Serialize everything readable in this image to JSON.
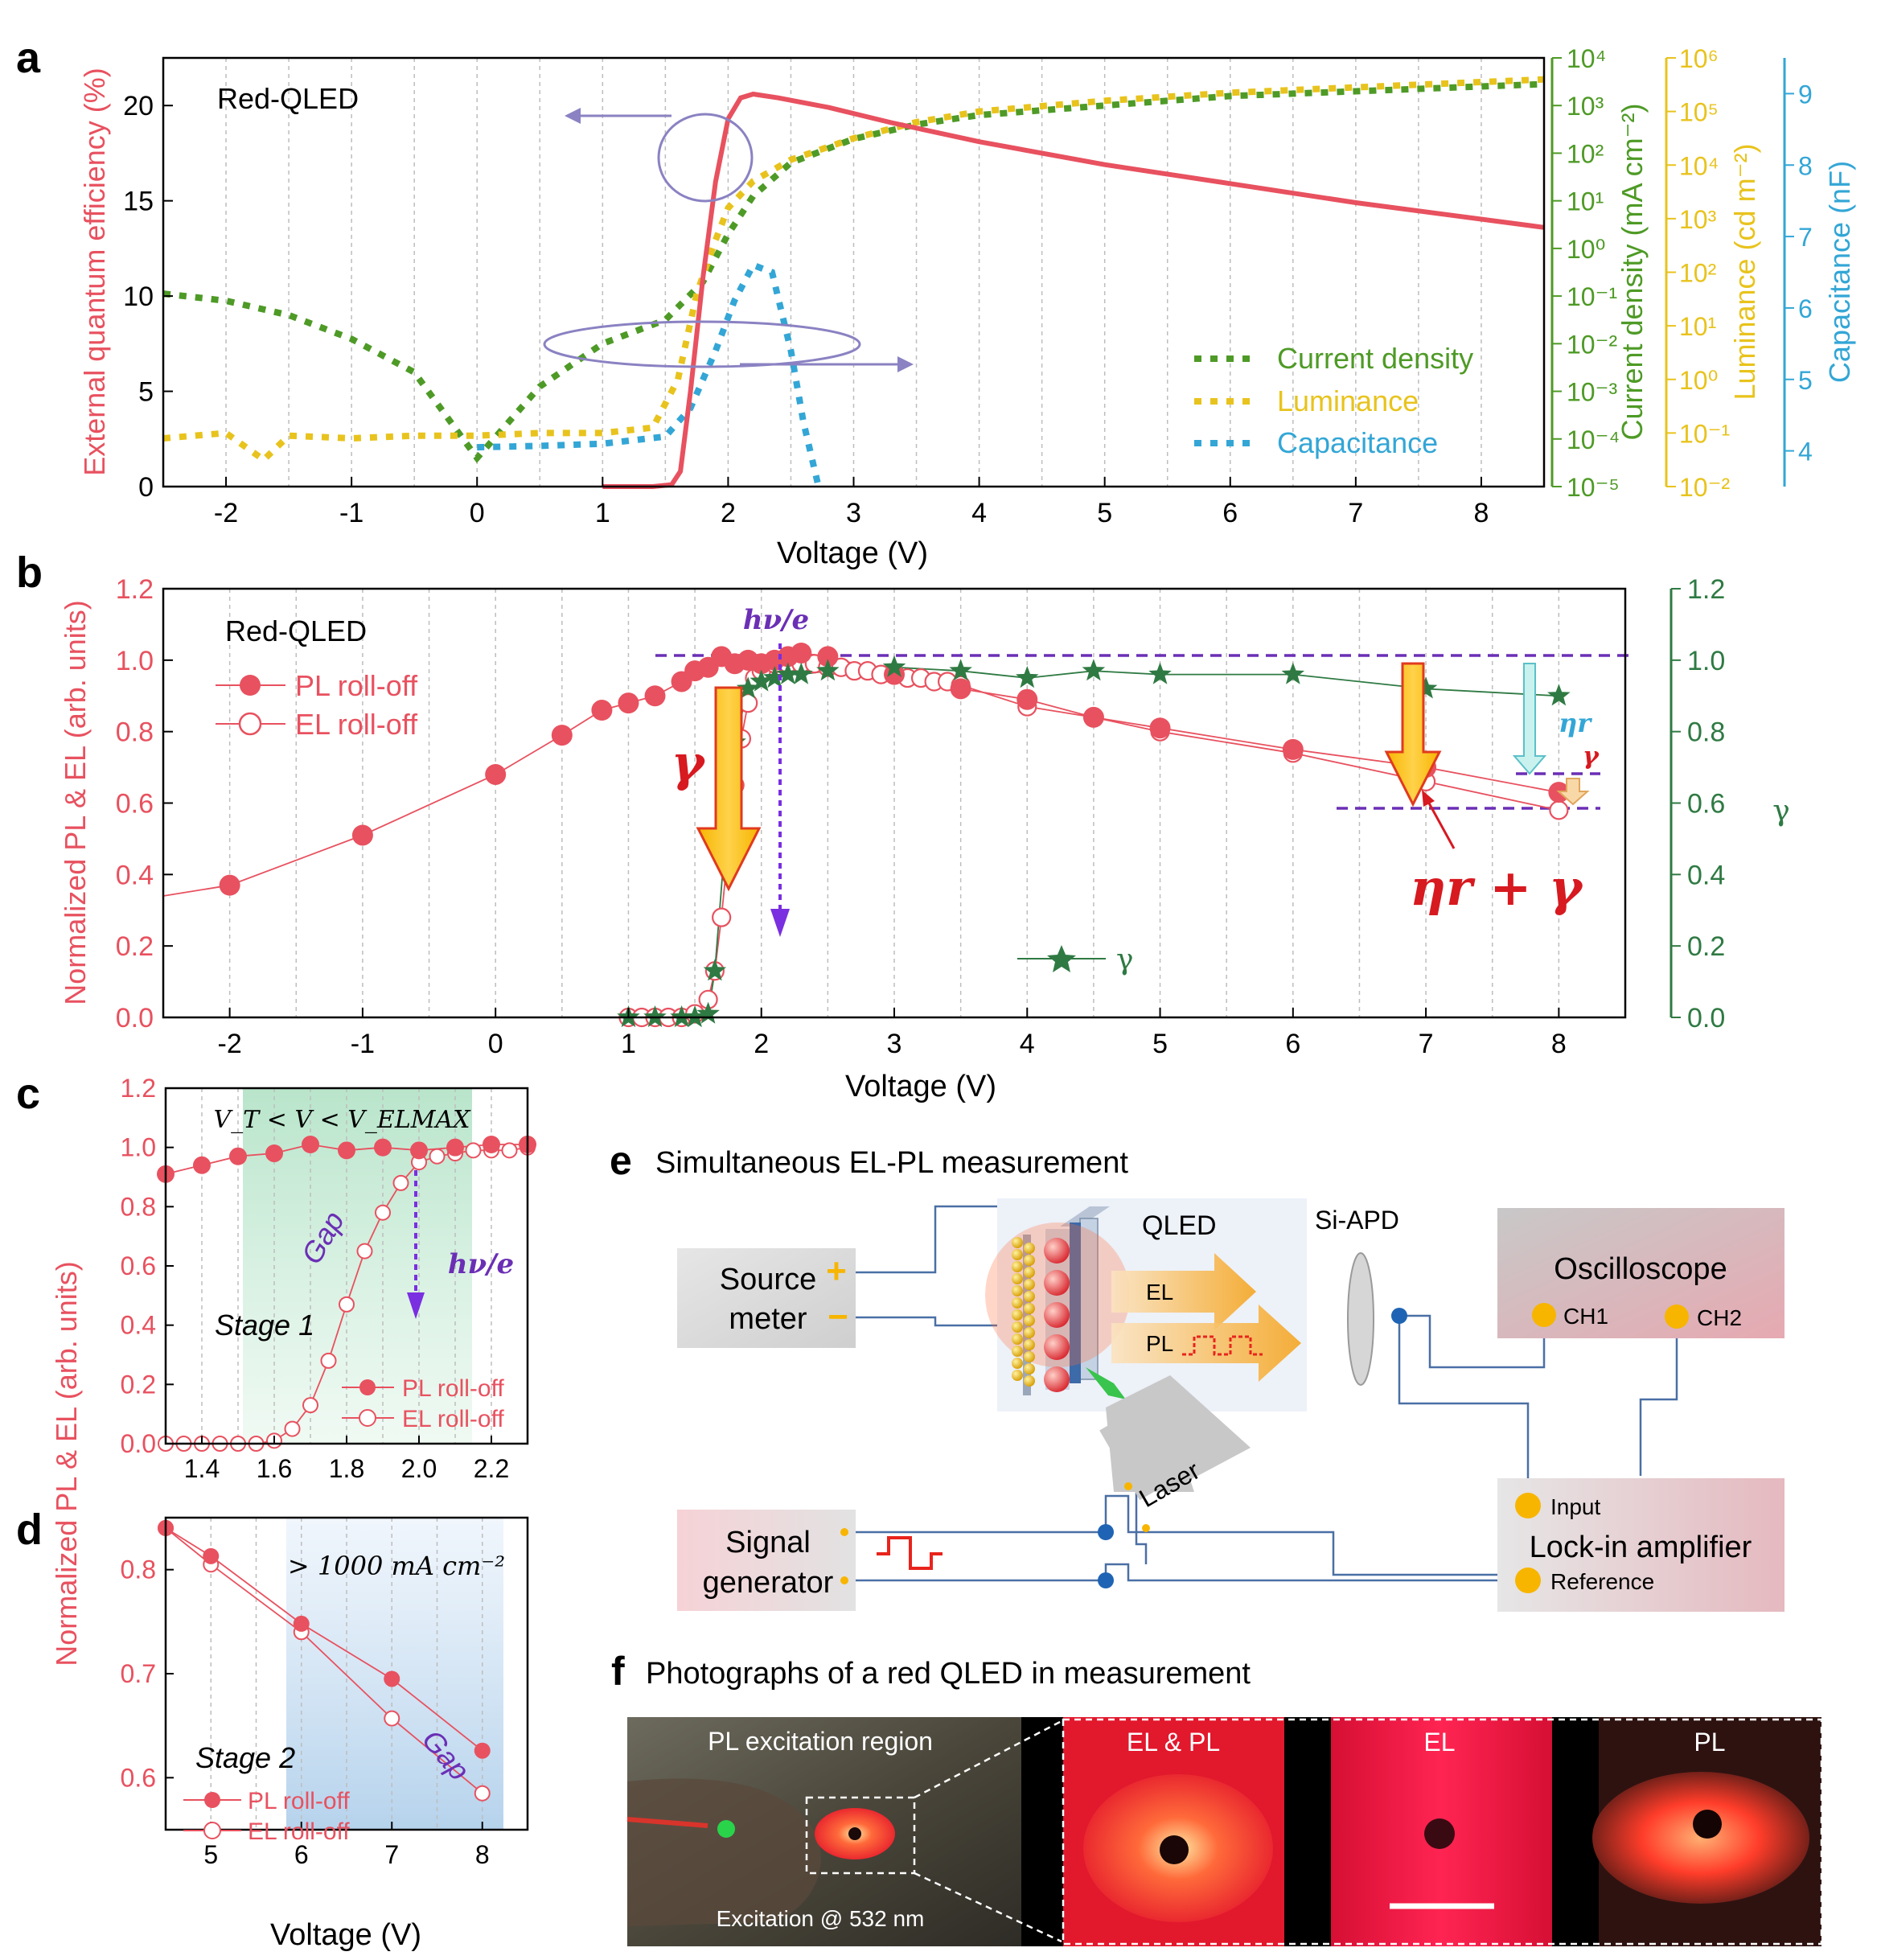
{
  "panels": {
    "a": "a",
    "b": "b",
    "c": "c",
    "d": "d",
    "e": "e",
    "f": "f"
  },
  "colors": {
    "eqe": "#e8515f",
    "current": "#4e9a26",
    "luminance": "#e8c31d",
    "capacitance": "#33a6d6",
    "pl": "#e8515f",
    "gamma": "#2f7a43",
    "purple": "#6b2fb5",
    "arrow_red": "#d71920",
    "arrow_orange": "#f7b500"
  },
  "chart_data": [
    {
      "panel": "a",
      "type": "line",
      "annotation": "Red-QLED",
      "xlabel": "Voltage (V)",
      "xlim": [
        -2.5,
        8.5
      ],
      "xticks": [
        "-2",
        "-1",
        "0",
        "1",
        "2",
        "3",
        "4",
        "5",
        "6",
        "7",
        "8"
      ],
      "ylabel_left": "External quantum efficiency (%)",
      "ylim_left": [
        0,
        22.5
      ],
      "yticks_left": [
        "0",
        "5",
        "10",
        "15",
        "20"
      ],
      "axis_current": {
        "label": "Current density (mA cm⁻²)",
        "range_log10": [
          -5,
          4
        ],
        "ticks": [
          "10⁻⁵",
          "10⁻⁴",
          "10⁻³",
          "10⁻²",
          "10⁻¹",
          "10⁰",
          "10¹",
          "10²",
          "10³",
          "10⁴"
        ]
      },
      "axis_luminance": {
        "label": "Luminance (cd m⁻²)",
        "range_log10": [
          -2,
          6
        ],
        "ticks": [
          "10⁻²",
          "10⁻¹",
          "10⁰",
          "10¹",
          "10²",
          "10³",
          "10⁴",
          "10⁵",
          "10⁶"
        ]
      },
      "axis_capacitance": {
        "label": "Capacitance (nF)",
        "range": [
          3.5,
          9.5
        ],
        "ticks": [
          "4",
          "5",
          "6",
          "7",
          "8",
          "9"
        ]
      },
      "legend": [
        "Current density",
        "Luminance",
        "Capacitance"
      ],
      "series": [
        {
          "name": "EQE",
          "axis": "left",
          "x": [
            1.0,
            1.4,
            1.55,
            1.62,
            1.7,
            1.8,
            1.9,
            2.0,
            2.1,
            2.2,
            2.4,
            2.8,
            3.3,
            4.0,
            5.0,
            6.0,
            7.0,
            8.5
          ],
          "y": [
            0,
            0,
            0.1,
            0.8,
            5,
            11,
            16,
            19.3,
            20.4,
            20.6,
            20.4,
            19.9,
            19.1,
            18.1,
            16.9,
            15.9,
            14.9,
            13.6
          ]
        },
        {
          "name": "Current density",
          "axis": "current_log10",
          "x": [
            -2.5,
            -2.0,
            -1.5,
            -1.0,
            -0.5,
            0.0,
            0.5,
            1.0,
            1.5,
            1.8,
            2.0,
            2.2,
            2.5,
            3.0,
            3.5,
            4.0,
            5.0,
            6.0,
            7.0,
            8.0,
            8.5
          ],
          "y": [
            -0.95,
            -1.1,
            -1.4,
            -1.9,
            -2.6,
            -4.4,
            -2.9,
            -2.0,
            -1.5,
            -0.7,
            0.3,
            1.1,
            1.8,
            2.3,
            2.6,
            2.8,
            3.0,
            3.2,
            3.3,
            3.4,
            3.45
          ]
        },
        {
          "name": "Luminance",
          "axis": "luminance_log10",
          "x": [
            -2.5,
            -2.0,
            -1.7,
            -1.5,
            -1.0,
            -0.5,
            0.0,
            0.5,
            1.0,
            1.4,
            1.6,
            1.75,
            1.9,
            2.0,
            2.2,
            2.5,
            3.0,
            3.5,
            4.0,
            5.0,
            6.0,
            7.0,
            8.0,
            8.5
          ],
          "y": [
            -1.1,
            -1.0,
            -1.5,
            -1.05,
            -1.1,
            -1.05,
            -1.05,
            -1.0,
            -1.0,
            -0.9,
            0.0,
            1.6,
            2.6,
            3.2,
            3.7,
            4.1,
            4.5,
            4.8,
            5.0,
            5.2,
            5.35,
            5.45,
            5.55,
            5.6
          ]
        },
        {
          "name": "Capacitance",
          "axis": "capacitance",
          "x": [
            0.0,
            0.5,
            1.0,
            1.5,
            1.7,
            1.9,
            2.05,
            2.2,
            2.35,
            2.5,
            2.6,
            2.72
          ],
          "y": [
            4.05,
            4.07,
            4.1,
            4.2,
            4.6,
            5.4,
            6.1,
            6.6,
            6.5,
            5.4,
            4.4,
            3.5
          ]
        }
      ]
    },
    {
      "panel": "b",
      "type": "scatter",
      "annotation": "Red-QLED",
      "xlabel": "Voltage (V)",
      "xlim": [
        -2.5,
        8.5
      ],
      "xticks": [
        "-2",
        "-1",
        "0",
        "1",
        "2",
        "3",
        "4",
        "5",
        "6",
        "7",
        "8"
      ],
      "ylabel_left": "Normalized PL & EL (arb. units)",
      "ylim_left": [
        0,
        1.2
      ],
      "yticks": [
        "0.0",
        "0.2",
        "0.4",
        "0.6",
        "0.8",
        "1.0",
        "1.2"
      ],
      "ylabel_right": "γ",
      "legend": [
        "PL roll-off",
        "EL roll-off",
        "γ"
      ],
      "labels": {
        "hv": "hν/e",
        "gamma": "γ",
        "eta_r": "ηr",
        "small_gamma": "γ",
        "eta_r_plus_gamma": "ηr + γ"
      },
      "series": [
        {
          "name": "PL roll-off",
          "x": [
            -2,
            -1,
            0,
            0.5,
            0.8,
            1.0,
            1.2,
            1.4,
            1.5,
            1.6,
            1.7,
            1.8,
            1.9,
            2.0,
            2.1,
            2.2,
            2.3,
            2.5,
            3.0,
            3.5,
            4.0,
            4.5,
            5.0,
            6.0,
            7.0,
            8.0
          ],
          "y": [
            0.37,
            0.51,
            0.68,
            0.79,
            0.86,
            0.88,
            0.9,
            0.94,
            0.97,
            0.98,
            1.01,
            0.99,
            1.0,
            0.99,
            1.0,
            1.01,
            1.02,
            1.01,
            0.96,
            0.92,
            0.89,
            0.84,
            0.81,
            0.75,
            0.7,
            0.63
          ]
        },
        {
          "name": "EL roll-off",
          "x": [
            1.0,
            1.1,
            1.2,
            1.3,
            1.4,
            1.5,
            1.6,
            1.65,
            1.7,
            1.75,
            1.8,
            1.85,
            1.9,
            1.95,
            2.0,
            2.1,
            2.2,
            2.3,
            2.4,
            2.5,
            2.6,
            2.7,
            2.8,
            2.9,
            3.0,
            3.1,
            3.2,
            3.3,
            3.4,
            3.5,
            4.0,
            4.5,
            5.0,
            6.0,
            7.0,
            8.0
          ],
          "y": [
            0,
            0,
            0,
            0,
            0,
            0.01,
            0.05,
            0.13,
            0.28,
            0.47,
            0.65,
            0.78,
            0.88,
            0.95,
            0.97,
            0.99,
            0.99,
            0.99,
            0.99,
            0.98,
            0.98,
            0.97,
            0.97,
            0.96,
            0.96,
            0.95,
            0.95,
            0.94,
            0.94,
            0.93,
            0.87,
            0.84,
            0.8,
            0.74,
            0.66,
            0.58
          ]
        },
        {
          "name": "γ",
          "x": [
            1.0,
            1.2,
            1.4,
            1.5,
            1.6,
            1.65,
            1.72,
            1.8,
            1.9,
            2.0,
            2.1,
            2.2,
            2.3,
            2.5,
            3.0,
            3.5,
            4.0,
            4.5,
            5.0,
            6.0,
            7.0,
            8.0
          ],
          "y": [
            0.0,
            0.0,
            0.0,
            0.0,
            0.01,
            0.13,
            0.46,
            0.77,
            0.92,
            0.94,
            0.95,
            0.96,
            0.96,
            0.97,
            0.98,
            0.97,
            0.95,
            0.97,
            0.96,
            0.96,
            0.92,
            0.9
          ]
        }
      ]
    },
    {
      "panel": "c",
      "type": "scatter",
      "xlim": [
        1.3,
        2.3
      ],
      "xticks": [
        "1.4",
        "1.6",
        "1.8",
        "2.0",
        "2.2"
      ],
      "ylim": [
        0,
        1.2
      ],
      "yticks": [
        "0.0",
        "0.2",
        "0.4",
        "0.6",
        "0.8",
        "1.0",
        "1.2"
      ],
      "labels": {
        "condition": "V_T < V < V_ELMAX",
        "gap": "Gap",
        "hv": "hν/e",
        "stage": "Stage 1"
      },
      "legend": [
        "PL roll-off",
        "EL roll-off"
      ],
      "series": [
        {
          "name": "PL roll-off",
          "x": [
            1.3,
            1.4,
            1.5,
            1.6,
            1.7,
            1.8,
            1.9,
            2.0,
            2.1,
            2.2,
            2.3
          ],
          "y": [
            0.91,
            0.94,
            0.97,
            0.98,
            1.01,
            0.99,
            1.0,
            0.99,
            1.0,
            1.01,
            1.01
          ]
        },
        {
          "name": "EL roll-off",
          "x": [
            1.3,
            1.35,
            1.4,
            1.45,
            1.5,
            1.55,
            1.6,
            1.65,
            1.7,
            1.75,
            1.8,
            1.85,
            1.9,
            1.95,
            2.0,
            2.05,
            2.1,
            2.15,
            2.2,
            2.25,
            2.3
          ],
          "y": [
            0,
            0,
            0,
            0,
            0,
            0,
            0.01,
            0.05,
            0.13,
            0.28,
            0.47,
            0.65,
            0.78,
            0.88,
            0.95,
            0.97,
            0.98,
            0.99,
            0.99,
            0.99,
            1.0
          ]
        }
      ]
    },
    {
      "panel": "d",
      "type": "scatter",
      "xlabel": "Voltage (V)",
      "xlim": [
        4.5,
        8.5
      ],
      "xticks": [
        "5",
        "6",
        "7",
        "8"
      ],
      "ylim": [
        0.55,
        0.85
      ],
      "yticks": [
        "0.6",
        "0.7",
        "0.8"
      ],
      "shared_ylabel": "Normalized PL & EL (arb. units)",
      "labels": {
        "condition": "> 1000 mA cm⁻²",
        "gap": "Gap",
        "stage": "Stage 2"
      },
      "legend": [
        "PL roll-off",
        "EL roll-off"
      ],
      "series": [
        {
          "name": "PL roll-off",
          "x": [
            4.5,
            5,
            6,
            7,
            8
          ],
          "y": [
            0.84,
            0.813,
            0.748,
            0.695,
            0.626
          ]
        },
        {
          "name": "EL roll-off",
          "x": [
            4.5,
            5,
            6,
            7,
            8
          ],
          "y": [
            0.84,
            0.805,
            0.74,
            0.657,
            0.585
          ]
        }
      ]
    }
  ],
  "panel_e": {
    "title": "Simultaneous EL-PL measurement",
    "source_meter": [
      "Source",
      "meter"
    ],
    "qled": "QLED",
    "el": "EL",
    "pl": "PL",
    "si_apd": "Si-APD",
    "oscilloscope": "Oscilloscope",
    "ch1": "CH1",
    "ch2": "CH2",
    "laser": "Laser",
    "signal_generator": [
      "Signal",
      "generator"
    ],
    "input": "Input",
    "lock_in": "Lock-in amplifier",
    "reference": "Reference",
    "plus": "+",
    "minus": "−"
  },
  "panel_f": {
    "title": "Photographs of a red QLED in measurement",
    "region": "PL excitation region",
    "excitation": "Excitation @ 532 nm",
    "el_pl": "EL & PL",
    "el": "EL",
    "pl": "PL"
  }
}
